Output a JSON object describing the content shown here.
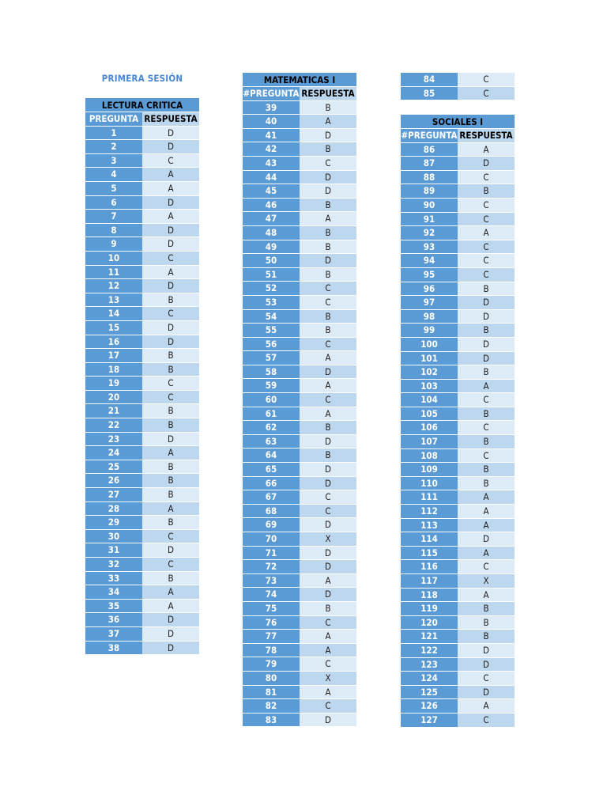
{
  "session_title": "PRIMERA SESIÓN",
  "tables": {
    "lectura": {
      "title": "LECTURA CRITICA",
      "col1": "PREGUNTA",
      "col2": "RESPUESTA",
      "rows": [
        [
          "1",
          "D"
        ],
        [
          "2",
          "D"
        ],
        [
          "3",
          "C"
        ],
        [
          "4",
          "A"
        ],
        [
          "5",
          "A"
        ],
        [
          "6",
          "D"
        ],
        [
          "7",
          "A"
        ],
        [
          "8",
          "D"
        ],
        [
          "9",
          "D"
        ],
        [
          "10",
          "C"
        ],
        [
          "11",
          "A"
        ],
        [
          "12",
          "D"
        ],
        [
          "13",
          "B"
        ],
        [
          "14",
          "C"
        ],
        [
          "15",
          "D"
        ],
        [
          "16",
          "D"
        ],
        [
          "17",
          "B"
        ],
        [
          "18",
          "B"
        ],
        [
          "19",
          "C"
        ],
        [
          "20",
          "C"
        ],
        [
          "21",
          "B"
        ],
        [
          "22",
          "B"
        ],
        [
          "23",
          "D"
        ],
        [
          "24",
          "A"
        ],
        [
          "25",
          "B"
        ],
        [
          "26",
          "B"
        ],
        [
          "27",
          "B"
        ],
        [
          "28",
          "A"
        ],
        [
          "29",
          "B"
        ],
        [
          "30",
          "C"
        ],
        [
          "31",
          "D"
        ],
        [
          "32",
          "C"
        ],
        [
          "33",
          "B"
        ],
        [
          "34",
          "A"
        ],
        [
          "35",
          "A"
        ],
        [
          "36",
          "D"
        ],
        [
          "37",
          "D"
        ],
        [
          "38",
          "D"
        ]
      ]
    },
    "matematicas": {
      "title": "MATEMATICAS I",
      "col1": "#PREGUNTA",
      "col2": "RESPUESTA",
      "rows": [
        [
          "39",
          "B"
        ],
        [
          "40",
          "A"
        ],
        [
          "41",
          "D"
        ],
        [
          "42",
          "B"
        ],
        [
          "43",
          "C"
        ],
        [
          "44",
          "D"
        ],
        [
          "45",
          "D"
        ],
        [
          "46",
          "B"
        ],
        [
          "47",
          "A"
        ],
        [
          "48",
          "B"
        ],
        [
          "49",
          "B"
        ],
        [
          "50",
          "D"
        ],
        [
          "51",
          "B"
        ],
        [
          "52",
          "C"
        ],
        [
          "53",
          "C"
        ],
        [
          "54",
          "B"
        ],
        [
          "55",
          "B"
        ],
        [
          "56",
          "C"
        ],
        [
          "57",
          "A"
        ],
        [
          "58",
          "D"
        ],
        [
          "59",
          "A"
        ],
        [
          "60",
          "C"
        ],
        [
          "61",
          "A"
        ],
        [
          "62",
          "B"
        ],
        [
          "63",
          "D"
        ],
        [
          "64",
          "B"
        ],
        [
          "65",
          "D"
        ],
        [
          "66",
          "D"
        ],
        [
          "67",
          "C"
        ],
        [
          "68",
          "C"
        ],
        [
          "69",
          "D"
        ],
        [
          "70",
          "X"
        ],
        [
          "71",
          "D"
        ],
        [
          "72",
          "D"
        ],
        [
          "73",
          "A"
        ],
        [
          "74",
          "D"
        ],
        [
          "75",
          "B"
        ],
        [
          "76",
          "C"
        ],
        [
          "77",
          "A"
        ],
        [
          "78",
          "A"
        ],
        [
          "79",
          "C"
        ],
        [
          "80",
          "X"
        ],
        [
          "81",
          "A"
        ],
        [
          "82",
          "C"
        ],
        [
          "83",
          "D"
        ]
      ]
    },
    "matematicas_cont": {
      "rows": [
        [
          "84",
          "C"
        ],
        [
          "85",
          "C"
        ]
      ]
    },
    "sociales": {
      "title": "SOCIALES I",
      "col1": "#PREGUNTA",
      "col2": "RESPUESTA",
      "rows": [
        [
          "86",
          "A"
        ],
        [
          "87",
          "D"
        ],
        [
          "88",
          "C"
        ],
        [
          "89",
          "B"
        ],
        [
          "90",
          "C"
        ],
        [
          "91",
          "C"
        ],
        [
          "92",
          "A"
        ],
        [
          "93",
          "C"
        ],
        [
          "94",
          "C"
        ],
        [
          "95",
          "C"
        ],
        [
          "96",
          "B"
        ],
        [
          "97",
          "D"
        ],
        [
          "98",
          "D"
        ],
        [
          "99",
          "B"
        ],
        [
          "100",
          "D"
        ],
        [
          "101",
          "D"
        ],
        [
          "102",
          "B"
        ],
        [
          "103",
          "A"
        ],
        [
          "104",
          "C"
        ],
        [
          "105",
          "B"
        ],
        [
          "106",
          "C"
        ],
        [
          "107",
          "B"
        ],
        [
          "108",
          "C"
        ],
        [
          "109",
          "B"
        ],
        [
          "110",
          "B"
        ],
        [
          "111",
          "A"
        ],
        [
          "112",
          "A"
        ],
        [
          "113",
          "A"
        ],
        [
          "114",
          "D"
        ],
        [
          "115",
          "A"
        ],
        [
          "116",
          "C"
        ],
        [
          "117",
          "X"
        ],
        [
          "118",
          "A"
        ],
        [
          "119",
          "B"
        ],
        [
          "120",
          "B"
        ],
        [
          "121",
          "B"
        ],
        [
          "122",
          "D"
        ],
        [
          "123",
          "D"
        ],
        [
          "124",
          "C"
        ],
        [
          "125",
          "D"
        ],
        [
          "126",
          "A"
        ],
        [
          "127",
          "C"
        ]
      ]
    }
  }
}
